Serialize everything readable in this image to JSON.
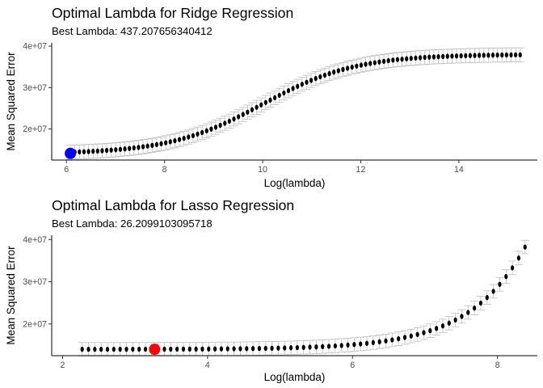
{
  "chart_data": [
    {
      "type": "scatter",
      "title": "Optimal Lambda for Ridge Regression",
      "subtitle": "Best Lambda:  437.207656340412",
      "xlabel": "Log(lambda)",
      "ylabel": "Mean Squared Error",
      "xlim": [
        5.7,
        15.6
      ],
      "ylim": [
        12500000,
        40800000
      ],
      "x_ticks": [
        6,
        8,
        10,
        12,
        14
      ],
      "y_ticks": [
        20000000,
        30000000,
        40000000
      ],
      "y_tick_labels": [
        "2e+07",
        "3e+07",
        "4e+07"
      ],
      "grid": false,
      "series_generator": {
        "x_start": 6.08,
        "x_end": 15.25,
        "n_points": 100,
        "curve": "logistic",
        "y_min": 14000000,
        "y_max": 38000000,
        "midpoint": 10.0,
        "scale": 0.95,
        "error_bar": 1700000
      },
      "best_point": {
        "x": 6.08,
        "y": 14100000,
        "color": "#0000ff"
      },
      "colors": {
        "points": "#000000",
        "error_bars": "#bebebe"
      }
    },
    {
      "type": "scatter",
      "title": "Optimal Lambda for Lasso Regression",
      "subtitle": "Best Lambda:  26.2099103095718",
      "xlabel": "Log(lambda)",
      "ylabel": "Mean Squared Error",
      "xlim": [
        1.85,
        8.55
      ],
      "ylim": [
        12500000,
        41000000
      ],
      "x_ticks": [
        2,
        4,
        6,
        8
      ],
      "y_ticks": [
        20000000,
        30000000,
        40000000
      ],
      "y_tick_labels": [
        "2e+07",
        "3e+07",
        "4e+07"
      ],
      "grid": false,
      "series_generator": {
        "x_start": 2.27,
        "x_end": 8.38,
        "n_points": 71,
        "curve": "exponential",
        "y_min": 14000000,
        "amplitude": 24200000,
        "x_ref": 8.38,
        "rate": 1.3,
        "error_bar": 1600000
      },
      "best_point": {
        "x": 3.27,
        "y": 14000000,
        "color": "#ff0000"
      },
      "colors": {
        "points": "#000000",
        "error_bars": "#bebebe"
      }
    }
  ]
}
